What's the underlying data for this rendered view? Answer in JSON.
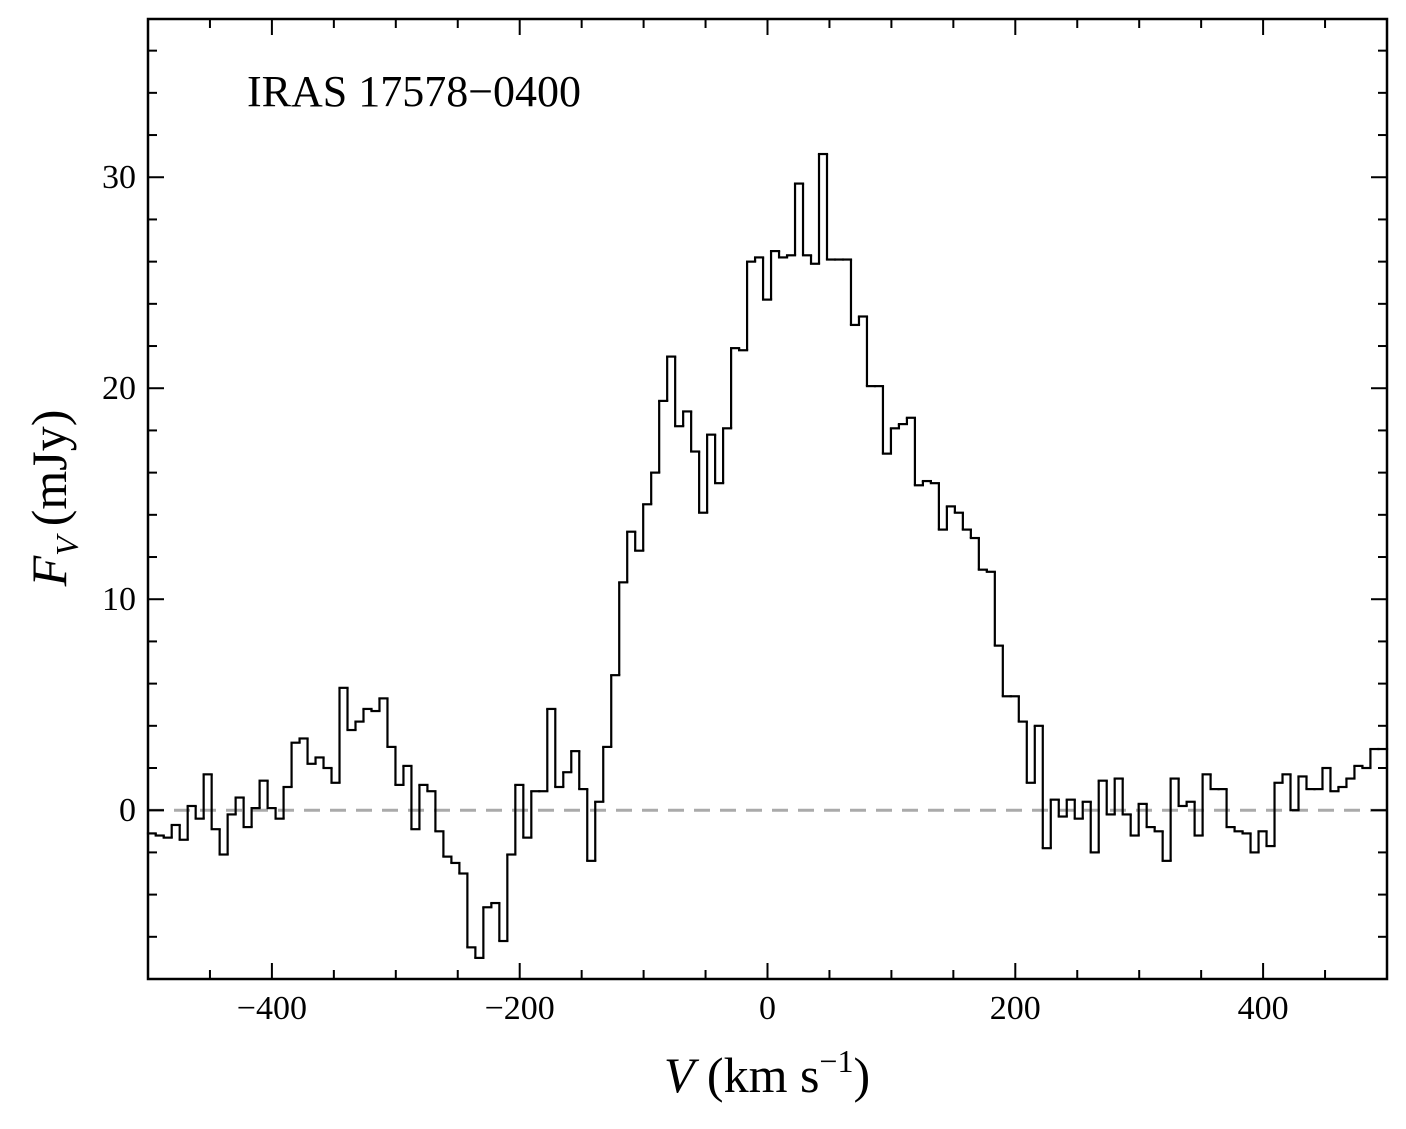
{
  "chart_data": {
    "type": "step",
    "annotation": "IRAS 17578−0400",
    "xlabel": {
      "symbol": "V",
      "unit": "(km s",
      "exponent": "−1",
      "close": ")"
    },
    "ylabel": {
      "symbol": "F",
      "subscript": "V",
      "unit": "(mJy)"
    },
    "xlim": [
      -500,
      500
    ],
    "ylim": [
      -8,
      37.5
    ],
    "xticks": [
      {
        "value": -400,
        "label": "−400"
      },
      {
        "value": -200,
        "label": "−200"
      },
      0,
      200,
      400
    ],
    "yticks": [
      0,
      10,
      20,
      30
    ],
    "xminor": [
      -450,
      -350,
      -300,
      -250,
      -150,
      -100,
      -50,
      50,
      100,
      150,
      250,
      300,
      350,
      450
    ],
    "yminor": [
      -6,
      -4,
      -2,
      2,
      4,
      6,
      8,
      12,
      14,
      16,
      18,
      22,
      24,
      26,
      28,
      32,
      34,
      36
    ],
    "reference_line": {
      "value": 0,
      "color": "#aaaaaa"
    },
    "series": [
      {
        "color": "#000000",
        "x": [
          -497,
          -490.55,
          -484.1,
          -477.65,
          -471.2,
          -464.75,
          -458.3,
          -451.85,
          -445.4,
          -438.95,
          -432.5,
          -426.05,
          -419.6,
          -413.15,
          -406.7,
          -400.25,
          -393.8,
          -387.35,
          -380.9,
          -374.45,
          -368,
          -361.55,
          -355.1,
          -348.65,
          -342.2,
          -335.75,
          -329.3,
          -322.85,
          -316.4,
          -309.95,
          -303.5,
          -297.05,
          -290.6,
          -284.15,
          -277.7,
          -271.25,
          -264.8,
          -258.35,
          -251.9,
          -245.45,
          -239,
          -232.55,
          -226.1,
          -219.65,
          -213.2,
          -206.75,
          -200.3,
          -193.85,
          -187.4,
          -180.95,
          -174.5,
          -168.05,
          -161.6,
          -155.15,
          -148.7,
          -142.25,
          -135.8,
          -129.35,
          -122.9,
          -116.45,
          -110,
          -103.55,
          -97.1,
          -90.65,
          -84.2,
          -77.75,
          -71.3,
          -64.85,
          -58.4,
          -51.95,
          -45.5,
          -39.05,
          -32.6,
          -26.15,
          -19.7,
          -13.25,
          -6.8,
          -0.35,
          6.1,
          12.55,
          19,
          25.45,
          31.9,
          38.35,
          44.8,
          51.25,
          57.7,
          64.15,
          70.6,
          77.05,
          83.5,
          89.95,
          96.4,
          102.85,
          109.3,
          115.75,
          122.2,
          128.65,
          135.1,
          141.55,
          148,
          154.45,
          160.9,
          167.35,
          173.8,
          180.25,
          186.7,
          193.15,
          199.6,
          206.05,
          212.5,
          218.95,
          225.4,
          231.85,
          238.3,
          244.75,
          251.2,
          257.65,
          264.1,
          270.55,
          277,
          283.45,
          289.9,
          296.35,
          302.8,
          309.25,
          315.7,
          322.15,
          328.6,
          335.05,
          341.5,
          347.95,
          354.4,
          360.85,
          367.3,
          373.75,
          380.2,
          386.65,
          393.1,
          399.55,
          406,
          412.45,
          418.9,
          425.35,
          431.8,
          438.25,
          444.7,
          451.15,
          457.6,
          464.05,
          470.5,
          476.95,
          483.4,
          489.85,
          496.3
        ],
        "values": [
          -1.1,
          -1.2,
          -1.3,
          -0.7,
          -1.4,
          0.2,
          -0.4,
          1.7,
          -0.9,
          -2.1,
          -0.2,
          0.6,
          -0.8,
          0.1,
          1.4,
          0.1,
          -0.4,
          1.1,
          3.2,
          3.4,
          2.2,
          2.5,
          2.0,
          1.3,
          5.8,
          3.8,
          4.2,
          4.8,
          4.7,
          5.3,
          3.0,
          1.2,
          2.1,
          -0.9,
          1.2,
          0.9,
          -1.0,
          -2.2,
          -2.5,
          -3.0,
          -6.5,
          -7.0,
          -4.6,
          -4.4,
          -6.2,
          -2.1,
          1.2,
          -1.3,
          0.9,
          0.9,
          4.8,
          1.1,
          1.8,
          2.8,
          1.0,
          -2.4,
          0.4,
          3.0,
          6.4,
          10.8,
          13.2,
          12.3,
          14.5,
          16.0,
          19.4,
          21.5,
          18.2,
          18.9,
          17.0,
          14.1,
          17.8,
          15.5,
          18.1,
          21.9,
          21.8,
          26.0,
          26.2,
          24.2,
          26.5,
          26.2,
          26.3,
          29.7,
          26.3,
          25.9,
          31.1,
          26.1,
          26.1,
          26.1,
          23.0,
          23.4,
          20.1,
          20.1,
          16.9,
          18.1,
          18.3,
          18.6,
          15.4,
          15.6,
          15.5,
          13.3,
          14.4,
          14.1,
          13.3,
          12.9,
          11.4,
          11.3,
          7.8,
          5.4,
          5.4,
          4.2,
          1.3,
          4.0,
          -1.8,
          0.5,
          -0.3,
          0.5,
          -0.4,
          0.4,
          -2.0,
          1.4,
          -0.2,
          1.5,
          -0.2,
          -1.2,
          0.3,
          -0.8,
          -1.0,
          -2.4,
          1.5,
          0.2,
          0.4,
          -1.2,
          1.7,
          1.0,
          1.0,
          -0.8,
          -1.0,
          -1.1,
          -2.0,
          -1.0,
          -1.7,
          1.3,
          1.7,
          0.0,
          1.6,
          1.0,
          1.0,
          2.0,
          0.9,
          1.1,
          1.5,
          2.1,
          2.0,
          2.9,
          2.9
        ]
      }
    ]
  }
}
